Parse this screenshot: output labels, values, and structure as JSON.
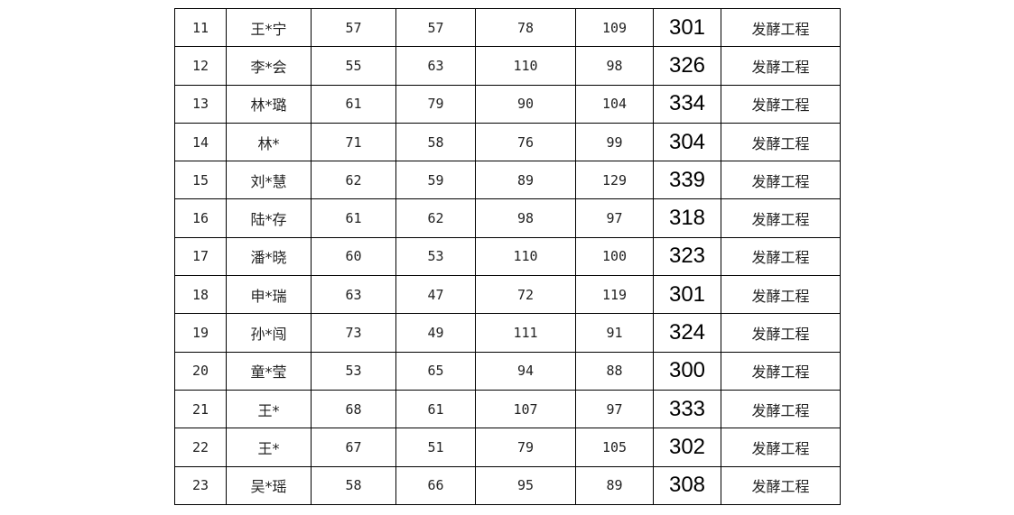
{
  "table": {
    "rows": [
      [
        "11",
        "王*宁",
        "57",
        "57",
        "78",
        "109",
        "301",
        "发酵工程"
      ],
      [
        "12",
        "李*会",
        "55",
        "63",
        "110",
        "98",
        "326",
        "发酵工程"
      ],
      [
        "13",
        "林*璐",
        "61",
        "79",
        "90",
        "104",
        "334",
        "发酵工程"
      ],
      [
        "14",
        "林*",
        "71",
        "58",
        "76",
        "99",
        "304",
        "发酵工程"
      ],
      [
        "15",
        "刘*慧",
        "62",
        "59",
        "89",
        "129",
        "339",
        "发酵工程"
      ],
      [
        "16",
        "陆*存",
        "61",
        "62",
        "98",
        "97",
        "318",
        "发酵工程"
      ],
      [
        "17",
        "潘*晓",
        "60",
        "53",
        "110",
        "100",
        "323",
        "发酵工程"
      ],
      [
        "18",
        "申*瑞",
        "63",
        "47",
        "72",
        "119",
        "301",
        "发酵工程"
      ],
      [
        "19",
        "孙*闯",
        "73",
        "49",
        "111",
        "91",
        "324",
        "发酵工程"
      ],
      [
        "20",
        "童*莹",
        "53",
        "65",
        "94",
        "88",
        "300",
        "发酵工程"
      ],
      [
        "21",
        "王*",
        "68",
        "61",
        "107",
        "97",
        "333",
        "发酵工程"
      ],
      [
        "22",
        "王*",
        "67",
        "51",
        "79",
        "105",
        "302",
        "发酵工程"
      ],
      [
        "23",
        "吴*瑶",
        "58",
        "66",
        "95",
        "89",
        "308",
        "发酵工程"
      ]
    ]
  }
}
